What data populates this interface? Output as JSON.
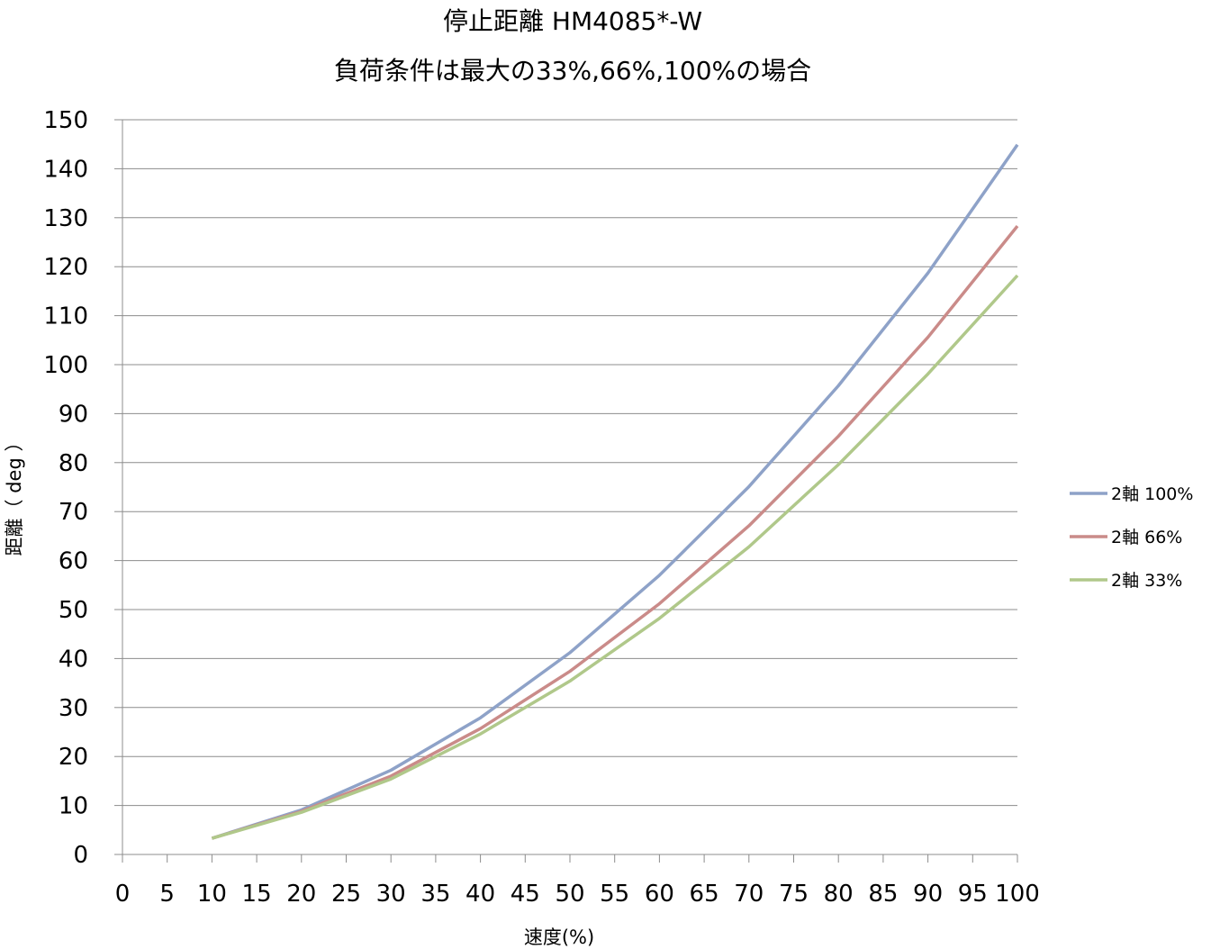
{
  "chart_data": {
    "type": "line",
    "title": "停止距離 HM4085*-W",
    "subtitle": "負荷条件は最大の33%,66%,100%の場合",
    "xlabel": "速度(%)",
    "ylabel": "距離（ deg ）",
    "xlim": [
      0,
      100
    ],
    "ylim": [
      0,
      150
    ],
    "x_ticks": [
      0,
      5,
      10,
      15,
      20,
      25,
      30,
      35,
      40,
      45,
      50,
      55,
      60,
      65,
      70,
      75,
      80,
      85,
      90,
      95,
      100
    ],
    "y_ticks": [
      0,
      10,
      20,
      30,
      40,
      50,
      60,
      70,
      80,
      90,
      100,
      110,
      120,
      130,
      140,
      150
    ],
    "grid": "horizontal",
    "legend_position": "right",
    "x": [
      10,
      20,
      30,
      40,
      50,
      60,
      70,
      80,
      90,
      100
    ],
    "series": [
      {
        "name": "2軸 100%",
        "color": "#8ea2c8",
        "values": [
          3.3,
          9.1,
          17.2,
          27.9,
          41.2,
          57.0,
          75.1,
          95.7,
          118.7,
          144.9
        ]
      },
      {
        "name": "2軸 66%",
        "color": "#ca8b89",
        "values": [
          3.3,
          8.8,
          16.0,
          25.7,
          37.4,
          51.2,
          67.1,
          85.4,
          105.6,
          128.3
        ]
      },
      {
        "name": "2軸 33%",
        "color": "#b0c88a",
        "values": [
          3.3,
          8.6,
          15.4,
          24.6,
          35.4,
          48.2,
          62.8,
          79.6,
          98.1,
          118.2
        ]
      }
    ]
  }
}
